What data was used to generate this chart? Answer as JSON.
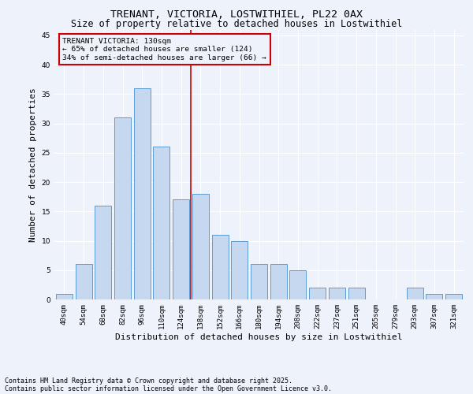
{
  "title": "TRENANT, VICTORIA, LOSTWITHIEL, PL22 0AX",
  "subtitle": "Size of property relative to detached houses in Lostwithiel",
  "xlabel": "Distribution of detached houses by size in Lostwithiel",
  "ylabel": "Number of detached properties",
  "categories": [
    "40sqm",
    "54sqm",
    "68sqm",
    "82sqm",
    "96sqm",
    "110sqm",
    "124sqm",
    "138sqm",
    "152sqm",
    "166sqm",
    "180sqm",
    "194sqm",
    "208sqm",
    "222sqm",
    "237sqm",
    "251sqm",
    "265sqm",
    "279sqm",
    "293sqm",
    "307sqm",
    "321sqm"
  ],
  "values": [
    1,
    6,
    16,
    31,
    36,
    26,
    17,
    18,
    11,
    10,
    6,
    6,
    5,
    2,
    2,
    2,
    0,
    0,
    2,
    1,
    1
  ],
  "bar_color": "#c5d8f0",
  "bar_edge_color": "#5b9bd5",
  "vline_color": "#cc0000",
  "annotation_title": "TRENANT VICTORIA: 130sqm",
  "annotation_line1": "← 65% of detached houses are smaller (124)",
  "annotation_line2": "34% of semi-detached houses are larger (66) →",
  "annotation_box_color": "#cc0000",
  "ylim": [
    0,
    46
  ],
  "yticks": [
    0,
    5,
    10,
    15,
    20,
    25,
    30,
    35,
    40,
    45
  ],
  "background_color": "#eef2fb",
  "footer_line1": "Contains HM Land Registry data © Crown copyright and database right 2025.",
  "footer_line2": "Contains public sector information licensed under the Open Government Licence v3.0.",
  "title_fontsize": 9.5,
  "subtitle_fontsize": 8.5,
  "ylabel_fontsize": 8,
  "xlabel_fontsize": 8,
  "tick_fontsize": 6.5,
  "annotation_fontsize": 6.8,
  "footer_fontsize": 6
}
